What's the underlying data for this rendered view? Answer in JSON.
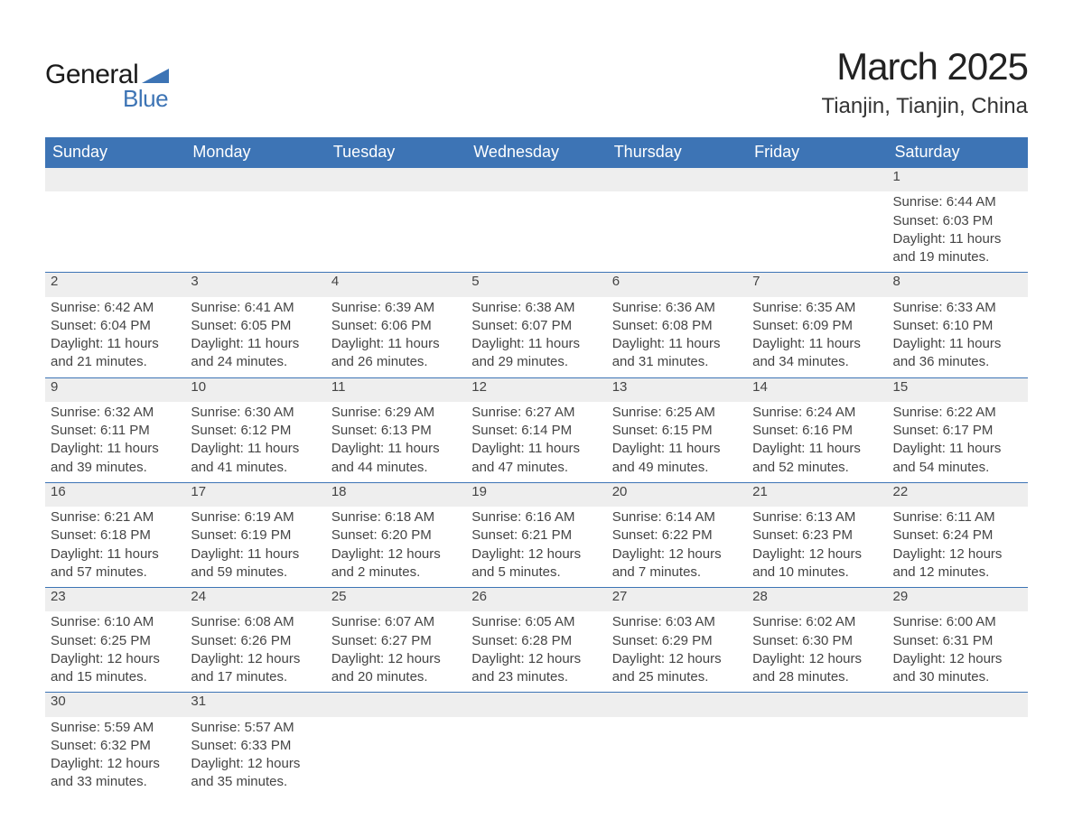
{
  "logo": {
    "text1": "General",
    "text2": "Blue",
    "text_color": "#1a1a1a",
    "accent_color": "#3d74b5"
  },
  "title": {
    "month_year": "March 2025",
    "location": "Tianjin, Tianjin, China",
    "month_fontsize": 42,
    "location_fontsize": 24
  },
  "calendar": {
    "header_bg": "#3d74b5",
    "header_fg": "#ffffff",
    "row_border_color": "#3d74b5",
    "daynum_bg": "#eeeeee",
    "text_color": "#444444",
    "columns": [
      "Sunday",
      "Monday",
      "Tuesday",
      "Wednesday",
      "Thursday",
      "Friday",
      "Saturday"
    ],
    "weeks": [
      [
        null,
        null,
        null,
        null,
        null,
        null,
        {
          "day": "1",
          "sunrise": "Sunrise: 6:44 AM",
          "sunset": "Sunset: 6:03 PM",
          "daylight1": "Daylight: 11 hours",
          "daylight2": "and 19 minutes."
        }
      ],
      [
        {
          "day": "2",
          "sunrise": "Sunrise: 6:42 AM",
          "sunset": "Sunset: 6:04 PM",
          "daylight1": "Daylight: 11 hours",
          "daylight2": "and 21 minutes."
        },
        {
          "day": "3",
          "sunrise": "Sunrise: 6:41 AM",
          "sunset": "Sunset: 6:05 PM",
          "daylight1": "Daylight: 11 hours",
          "daylight2": "and 24 minutes."
        },
        {
          "day": "4",
          "sunrise": "Sunrise: 6:39 AM",
          "sunset": "Sunset: 6:06 PM",
          "daylight1": "Daylight: 11 hours",
          "daylight2": "and 26 minutes."
        },
        {
          "day": "5",
          "sunrise": "Sunrise: 6:38 AM",
          "sunset": "Sunset: 6:07 PM",
          "daylight1": "Daylight: 11 hours",
          "daylight2": "and 29 minutes."
        },
        {
          "day": "6",
          "sunrise": "Sunrise: 6:36 AM",
          "sunset": "Sunset: 6:08 PM",
          "daylight1": "Daylight: 11 hours",
          "daylight2": "and 31 minutes."
        },
        {
          "day": "7",
          "sunrise": "Sunrise: 6:35 AM",
          "sunset": "Sunset: 6:09 PM",
          "daylight1": "Daylight: 11 hours",
          "daylight2": "and 34 minutes."
        },
        {
          "day": "8",
          "sunrise": "Sunrise: 6:33 AM",
          "sunset": "Sunset: 6:10 PM",
          "daylight1": "Daylight: 11 hours",
          "daylight2": "and 36 minutes."
        }
      ],
      [
        {
          "day": "9",
          "sunrise": "Sunrise: 6:32 AM",
          "sunset": "Sunset: 6:11 PM",
          "daylight1": "Daylight: 11 hours",
          "daylight2": "and 39 minutes."
        },
        {
          "day": "10",
          "sunrise": "Sunrise: 6:30 AM",
          "sunset": "Sunset: 6:12 PM",
          "daylight1": "Daylight: 11 hours",
          "daylight2": "and 41 minutes."
        },
        {
          "day": "11",
          "sunrise": "Sunrise: 6:29 AM",
          "sunset": "Sunset: 6:13 PM",
          "daylight1": "Daylight: 11 hours",
          "daylight2": "and 44 minutes."
        },
        {
          "day": "12",
          "sunrise": "Sunrise: 6:27 AM",
          "sunset": "Sunset: 6:14 PM",
          "daylight1": "Daylight: 11 hours",
          "daylight2": "and 47 minutes."
        },
        {
          "day": "13",
          "sunrise": "Sunrise: 6:25 AM",
          "sunset": "Sunset: 6:15 PM",
          "daylight1": "Daylight: 11 hours",
          "daylight2": "and 49 minutes."
        },
        {
          "day": "14",
          "sunrise": "Sunrise: 6:24 AM",
          "sunset": "Sunset: 6:16 PM",
          "daylight1": "Daylight: 11 hours",
          "daylight2": "and 52 minutes."
        },
        {
          "day": "15",
          "sunrise": "Sunrise: 6:22 AM",
          "sunset": "Sunset: 6:17 PM",
          "daylight1": "Daylight: 11 hours",
          "daylight2": "and 54 minutes."
        }
      ],
      [
        {
          "day": "16",
          "sunrise": "Sunrise: 6:21 AM",
          "sunset": "Sunset: 6:18 PM",
          "daylight1": "Daylight: 11 hours",
          "daylight2": "and 57 minutes."
        },
        {
          "day": "17",
          "sunrise": "Sunrise: 6:19 AM",
          "sunset": "Sunset: 6:19 PM",
          "daylight1": "Daylight: 11 hours",
          "daylight2": "and 59 minutes."
        },
        {
          "day": "18",
          "sunrise": "Sunrise: 6:18 AM",
          "sunset": "Sunset: 6:20 PM",
          "daylight1": "Daylight: 12 hours",
          "daylight2": "and 2 minutes."
        },
        {
          "day": "19",
          "sunrise": "Sunrise: 6:16 AM",
          "sunset": "Sunset: 6:21 PM",
          "daylight1": "Daylight: 12 hours",
          "daylight2": "and 5 minutes."
        },
        {
          "day": "20",
          "sunrise": "Sunrise: 6:14 AM",
          "sunset": "Sunset: 6:22 PM",
          "daylight1": "Daylight: 12 hours",
          "daylight2": "and 7 minutes."
        },
        {
          "day": "21",
          "sunrise": "Sunrise: 6:13 AM",
          "sunset": "Sunset: 6:23 PM",
          "daylight1": "Daylight: 12 hours",
          "daylight2": "and 10 minutes."
        },
        {
          "day": "22",
          "sunrise": "Sunrise: 6:11 AM",
          "sunset": "Sunset: 6:24 PM",
          "daylight1": "Daylight: 12 hours",
          "daylight2": "and 12 minutes."
        }
      ],
      [
        {
          "day": "23",
          "sunrise": "Sunrise: 6:10 AM",
          "sunset": "Sunset: 6:25 PM",
          "daylight1": "Daylight: 12 hours",
          "daylight2": "and 15 minutes."
        },
        {
          "day": "24",
          "sunrise": "Sunrise: 6:08 AM",
          "sunset": "Sunset: 6:26 PM",
          "daylight1": "Daylight: 12 hours",
          "daylight2": "and 17 minutes."
        },
        {
          "day": "25",
          "sunrise": "Sunrise: 6:07 AM",
          "sunset": "Sunset: 6:27 PM",
          "daylight1": "Daylight: 12 hours",
          "daylight2": "and 20 minutes."
        },
        {
          "day": "26",
          "sunrise": "Sunrise: 6:05 AM",
          "sunset": "Sunset: 6:28 PM",
          "daylight1": "Daylight: 12 hours",
          "daylight2": "and 23 minutes."
        },
        {
          "day": "27",
          "sunrise": "Sunrise: 6:03 AM",
          "sunset": "Sunset: 6:29 PM",
          "daylight1": "Daylight: 12 hours",
          "daylight2": "and 25 minutes."
        },
        {
          "day": "28",
          "sunrise": "Sunrise: 6:02 AM",
          "sunset": "Sunset: 6:30 PM",
          "daylight1": "Daylight: 12 hours",
          "daylight2": "and 28 minutes."
        },
        {
          "day": "29",
          "sunrise": "Sunrise: 6:00 AM",
          "sunset": "Sunset: 6:31 PM",
          "daylight1": "Daylight: 12 hours",
          "daylight2": "and 30 minutes."
        }
      ],
      [
        {
          "day": "30",
          "sunrise": "Sunrise: 5:59 AM",
          "sunset": "Sunset: 6:32 PM",
          "daylight1": "Daylight: 12 hours",
          "daylight2": "and 33 minutes."
        },
        {
          "day": "31",
          "sunrise": "Sunrise: 5:57 AM",
          "sunset": "Sunset: 6:33 PM",
          "daylight1": "Daylight: 12 hours",
          "daylight2": "and 35 minutes."
        },
        null,
        null,
        null,
        null,
        null
      ]
    ]
  }
}
